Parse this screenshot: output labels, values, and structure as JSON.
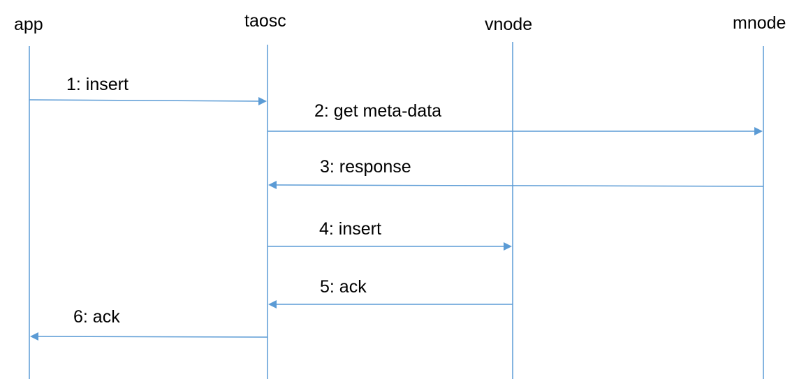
{
  "diagram": {
    "type": "sequence",
    "line_color": "#5b9bd5",
    "participants": [
      {
        "id": "app",
        "label": "app"
      },
      {
        "id": "taosc",
        "label": "taosc"
      },
      {
        "id": "vnode",
        "label": "vnode"
      },
      {
        "id": "mnode",
        "label": "mnode"
      }
    ],
    "messages": [
      {
        "label": "1: insert",
        "from": "app",
        "to": "taosc"
      },
      {
        "label": "2: get meta-data",
        "from": "taosc",
        "to": "mnode"
      },
      {
        "label": "3: response",
        "from": "mnode",
        "to": "taosc"
      },
      {
        "label": "4: insert",
        "from": "taosc",
        "to": "vnode"
      },
      {
        "label": "5: ack",
        "from": "vnode",
        "to": "taosc"
      },
      {
        "label": "6: ack",
        "from": "taosc",
        "to": "app"
      }
    ]
  }
}
